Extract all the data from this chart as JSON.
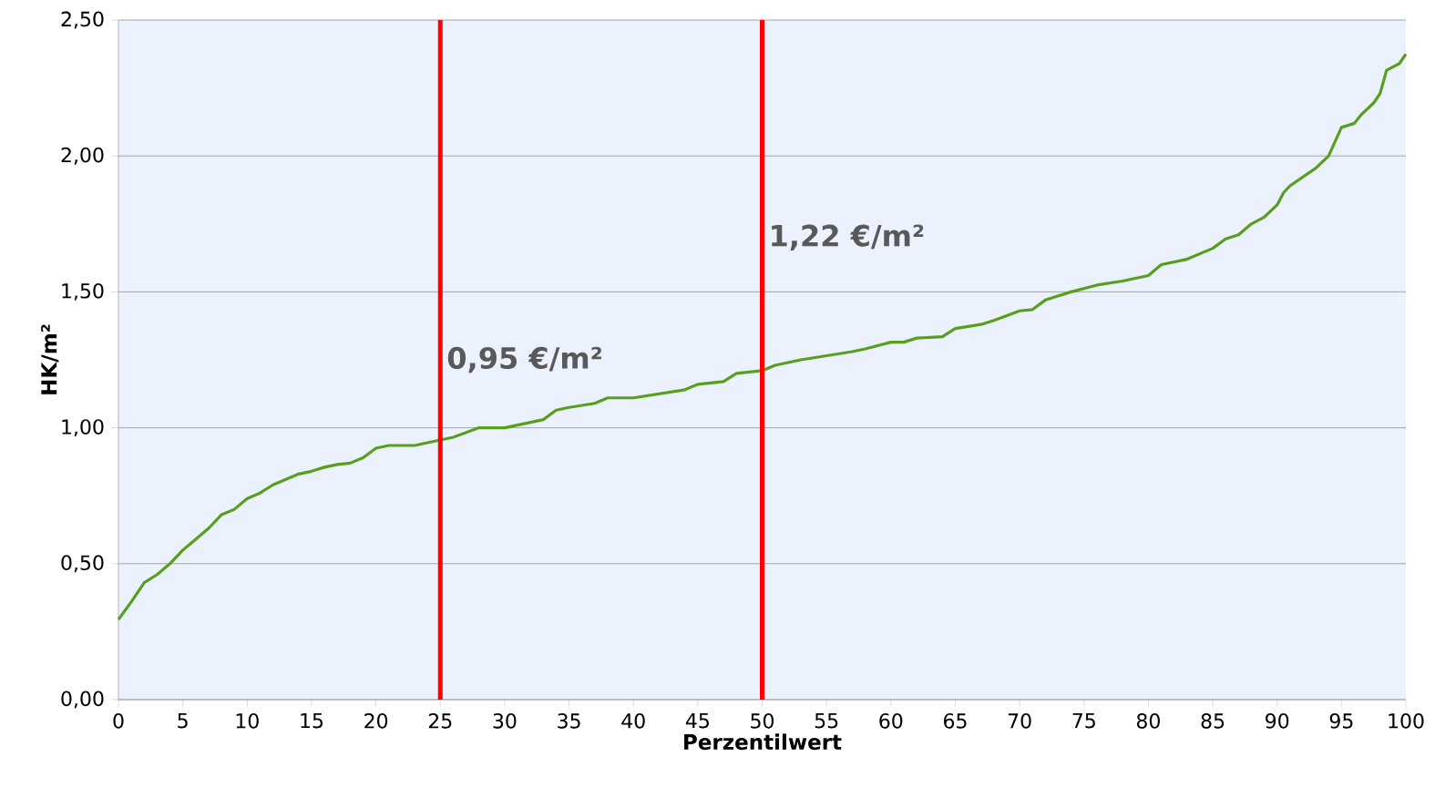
{
  "chart_data": {
    "type": "line",
    "xlabel": "Perzentilwert",
    "ylabel": "HK/m²",
    "x": [
      0,
      1,
      2,
      3,
      4,
      5,
      6,
      7,
      8,
      9,
      10,
      11,
      12,
      13,
      14,
      15,
      16,
      17,
      18,
      19,
      20,
      21,
      23,
      25,
      26,
      28,
      30,
      32,
      33,
      34,
      35,
      37,
      38,
      40,
      42,
      44,
      45,
      47,
      48,
      50,
      51,
      53,
      55,
      57,
      58,
      60,
      61,
      62,
      64,
      65,
      67,
      68,
      70,
      71,
      72,
      74,
      76,
      78,
      80,
      81,
      83,
      85,
      86,
      87,
      88,
      89,
      90,
      90.5,
      91,
      93,
      94,
      95,
      96,
      96.5,
      97.5,
      98,
      98.5,
      99.5,
      100
    ],
    "series": [
      {
        "color": "#5a9e1e",
        "values": [
          0.295,
          0.36,
          0.43,
          0.46,
          0.5,
          0.55,
          0.59,
          0.63,
          0.68,
          0.7,
          0.74,
          0.76,
          0.79,
          0.81,
          0.83,
          0.84,
          0.855,
          0.865,
          0.87,
          0.89,
          0.925,
          0.935,
          0.935,
          0.955,
          0.965,
          1.0,
          1.0,
          1.02,
          1.03,
          1.065,
          1.075,
          1.09,
          1.11,
          1.11,
          1.125,
          1.14,
          1.16,
          1.17,
          1.2,
          1.21,
          1.23,
          1.25,
          1.265,
          1.28,
          1.29,
          1.315,
          1.315,
          1.33,
          1.335,
          1.365,
          1.38,
          1.395,
          1.43,
          1.435,
          1.47,
          1.5,
          1.525,
          1.54,
          1.56,
          1.6,
          1.62,
          1.66,
          1.695,
          1.71,
          1.75,
          1.775,
          1.82,
          1.865,
          1.89,
          1.955,
          2.0,
          2.105,
          2.12,
          2.15,
          2.195,
          2.23,
          2.315,
          2.34,
          2.375
        ]
      }
    ],
    "xlim": [
      0,
      100
    ],
    "ylim": [
      0,
      2.5
    ],
    "xticks": [
      0,
      5,
      10,
      15,
      20,
      25,
      30,
      35,
      40,
      45,
      50,
      55,
      60,
      65,
      70,
      75,
      80,
      85,
      90,
      95,
      100
    ],
    "yticks": [
      {
        "value": 0,
        "label": "0,00"
      },
      {
        "value": 0.5,
        "label": "0,50"
      },
      {
        "value": 1,
        "label": "1,00"
      },
      {
        "value": 1.5,
        "label": "1,50"
      },
      {
        "value": 2,
        "label": "2,00"
      },
      {
        "value": 2.5,
        "label": "2,50"
      }
    ],
    "grid": "y",
    "marker": "none",
    "line_style": "solid",
    "ref_lines": [
      {
        "axis": "x",
        "value": 25,
        "label": "0,95 €/m²",
        "color": "#ff0000"
      },
      {
        "axis": "x",
        "value": 50,
        "label": "1,22 €/m²",
        "color": "#ff0000"
      }
    ]
  }
}
